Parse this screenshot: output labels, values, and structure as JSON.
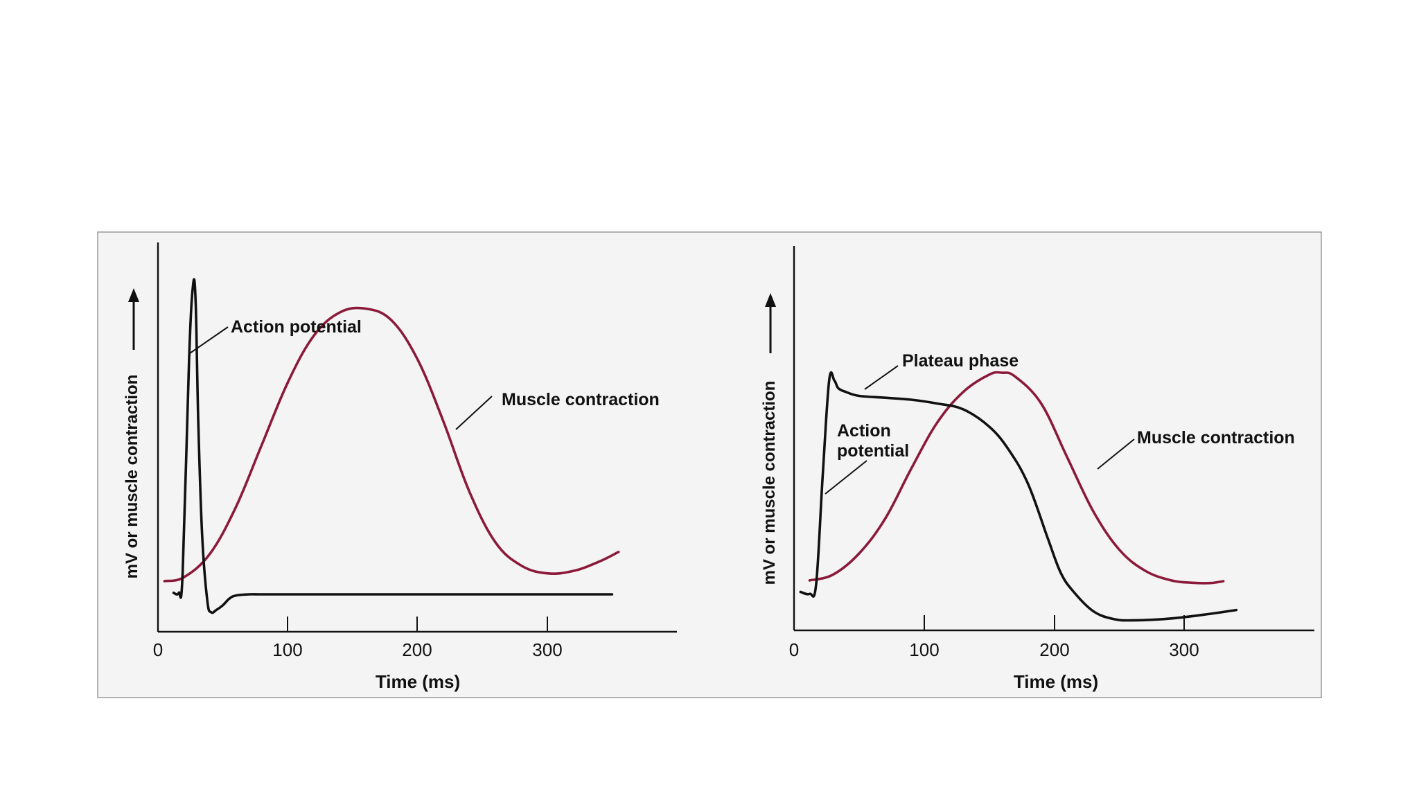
{
  "colors": {
    "action_potential": "#111111",
    "muscle_contraction": "#8b1a3a",
    "panel_background": "#f4f4f4"
  },
  "chart_data": [
    {
      "type": "line",
      "title": "",
      "xlabel": "Time (ms)",
      "ylabel": "mV or muscle contraction",
      "xlim": [
        0,
        400
      ],
      "ylim": [
        0,
        100
      ],
      "xticks": [
        0,
        100,
        200,
        300
      ],
      "xtick_labels": [
        "0",
        "100",
        "200",
        "300"
      ],
      "grid": false,
      "series": [
        {
          "name": "Action potential",
          "color": "#111111",
          "x": [
            12,
            16,
            19,
            24,
            27,
            29,
            31,
            34,
            38,
            41,
            45,
            50,
            55,
            60,
            70,
            80,
            100,
            150,
            200,
            250,
            300,
            350
          ],
          "y": [
            10,
            10,
            15,
            70,
            89,
            85,
            55,
            25,
            8,
            5,
            5.6,
            6.8,
            8.5,
            9.3,
            9.6,
            9.6,
            9.6,
            9.6,
            9.6,
            9.6,
            9.6,
            9.6
          ]
        },
        {
          "name": "Muscle contraction",
          "color": "#8b1a3a",
          "x": [
            5,
            20,
            40,
            60,
            80,
            100,
            120,
            140,
            160,
            180,
            200,
            220,
            240,
            260,
            280,
            300,
            320,
            340,
            355
          ],
          "y": [
            13,
            14,
            20,
            32,
            48,
            64,
            76,
            82,
            83,
            80,
            70,
            54,
            36,
            23,
            17,
            15,
            15.6,
            18,
            20.5
          ]
        }
      ],
      "annotations": [
        {
          "text": "Action potential",
          "series": "Action potential"
        },
        {
          "text": "Muscle contraction",
          "series": "Muscle contraction"
        }
      ]
    },
    {
      "type": "line",
      "title": "",
      "xlabel": "Time (ms)",
      "ylabel": "mV or muscle contraction",
      "xlim": [
        0,
        400
      ],
      "ylim": [
        0,
        100
      ],
      "xticks": [
        0,
        100,
        200,
        300
      ],
      "xtick_labels": [
        "0",
        "100",
        "200",
        "300"
      ],
      "grid": false,
      "series": [
        {
          "name": "Action potential",
          "color": "#111111",
          "x": [
            5,
            12,
            17,
            22,
            27,
            31,
            34,
            40,
            50,
            70,
            90,
            110,
            130,
            150,
            165,
            180,
            195,
            205,
            215,
            230,
            245,
            260,
            290,
            320,
            340
          ],
          "y": [
            10,
            9.5,
            12,
            40,
            65,
            65,
            63,
            62,
            61,
            60.5,
            60,
            59,
            57.5,
            53,
            47,
            38,
            24,
            15,
            10,
            5,
            3,
            2.6,
            3.1,
            4.3,
            5.3
          ]
        },
        {
          "name": "Muscle contraction",
          "color": "#8b1a3a",
          "x": [
            12,
            30,
            50,
            70,
            90,
            110,
            130,
            150,
            160,
            170,
            190,
            210,
            230,
            250,
            270,
            290,
            305,
            320,
            330
          ],
          "y": [
            13,
            14.5,
            20,
            29,
            42,
            54,
            62,
            66.5,
            67,
            66,
            59,
            45,
            31,
            21,
            15.5,
            13,
            12.4,
            12.3,
            12.8
          ]
        }
      ],
      "annotations": [
        {
          "text": "Plateau phase",
          "series": "Action potential"
        },
        {
          "text": "Action potential",
          "series": "Action potential"
        },
        {
          "text": "Muscle contraction",
          "series": "Muscle contraction"
        }
      ]
    }
  ]
}
